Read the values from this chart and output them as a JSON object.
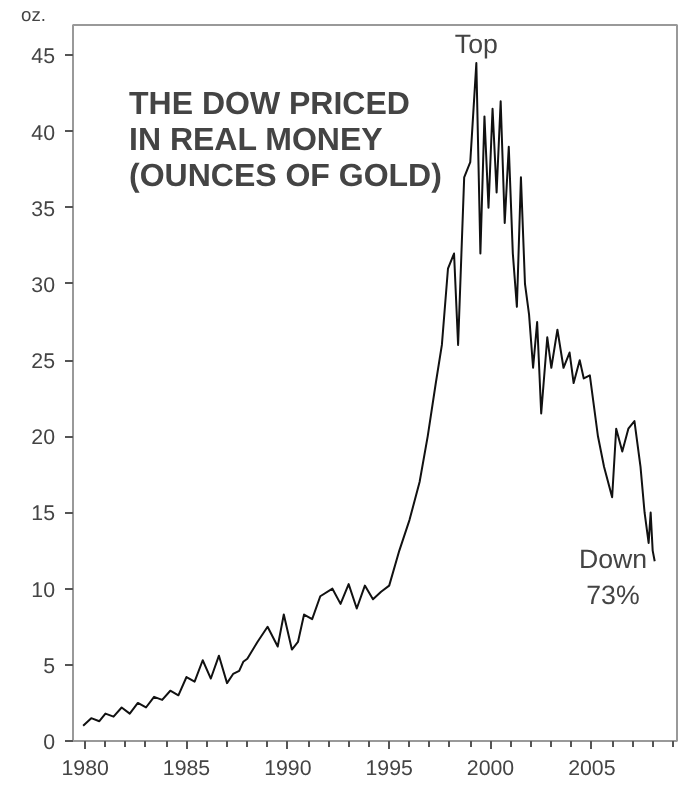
{
  "chart_data": {
    "type": "line",
    "title": "THE DOW PRICED\nIN REAL MONEY\n(OUNCES OF GOLD)",
    "ylabel": "oz.",
    "annotations": [
      {
        "text": "Top",
        "x": 1999.3,
        "y": 44.5
      },
      "Down\n73%"
    ],
    "x": [
      1979.9,
      1980.3,
      1980.7,
      1981.0,
      1981.4,
      1981.8,
      1982.2,
      1982.6,
      1983.0,
      1983.4,
      1983.8,
      1984.2,
      1984.6,
      1985.0,
      1985.4,
      1985.8,
      1986.2,
      1986.6,
      1987.0,
      1987.3,
      1987.6,
      1987.8,
      1988.0,
      1988.5,
      1989.0,
      1989.5,
      1989.8,
      1990.2,
      1990.5,
      1990.8,
      1991.2,
      1991.6,
      1992.2,
      1992.6,
      1993.0,
      1993.4,
      1993.8,
      1994.2,
      1994.6,
      1995.0,
      1995.5,
      1996.0,
      1996.5,
      1996.9,
      1997.3,
      1997.6,
      1997.9,
      1998.2,
      1998.4,
      1998.7,
      1999.0,
      1999.3,
      1999.5,
      1999.7,
      1999.9,
      2000.1,
      2000.3,
      2000.5,
      2000.7,
      2000.9,
      2001.1,
      2001.3,
      2001.5,
      2001.7,
      2001.9,
      2002.1,
      2002.3,
      2002.5,
      2002.8,
      2003.0,
      2003.3,
      2003.6,
      2003.9,
      2004.1,
      2004.4,
      2004.6,
      2004.9,
      2005.3,
      2005.6,
      2006.0,
      2006.2,
      2006.5,
      2006.8,
      2007.1,
      2007.4,
      2007.6,
      2007.8,
      2007.9,
      2008.0,
      2008.1
    ],
    "values": [
      1.0,
      1.5,
      1.3,
      1.8,
      1.6,
      2.2,
      1.8,
      2.5,
      2.2,
      2.9,
      2.7,
      3.3,
      3.0,
      4.2,
      3.9,
      5.3,
      4.1,
      5.6,
      3.8,
      4.4,
      4.6,
      5.2,
      5.4,
      6.5,
      7.5,
      6.2,
      8.3,
      6.0,
      6.5,
      8.3,
      8.0,
      9.5,
      10.0,
      9.0,
      10.3,
      8.7,
      10.2,
      9.3,
      9.8,
      10.2,
      12.5,
      14.5,
      17.0,
      20.0,
      23.5,
      26.0,
      31.0,
      32.0,
      26.0,
      37.0,
      38.0,
      44.5,
      32.0,
      41.0,
      35.0,
      41.5,
      36.0,
      42.0,
      34.0,
      39.0,
      32.0,
      28.5,
      37.0,
      30.0,
      28.0,
      24.5,
      27.5,
      21.5,
      26.5,
      24.5,
      27.0,
      24.5,
      25.5,
      23.5,
      25.0,
      23.8,
      24.0,
      20.0,
      18.0,
      16.0,
      20.5,
      19.0,
      20.5,
      21.0,
      18.0,
      15.0,
      13.0,
      15.0,
      12.5,
      11.8
    ],
    "color": "#111111",
    "xlim": [
      1979.4,
      2009.2
    ],
    "ylim": [
      0,
      47
    ],
    "xticks": [
      1980,
      1985,
      1990,
      1995,
      2000,
      2005
    ],
    "yticks": [
      0,
      5,
      10,
      15,
      20,
      25,
      30,
      35,
      40,
      45
    ],
    "grid": false,
    "marker": "none",
    "line_style": "solid"
  }
}
